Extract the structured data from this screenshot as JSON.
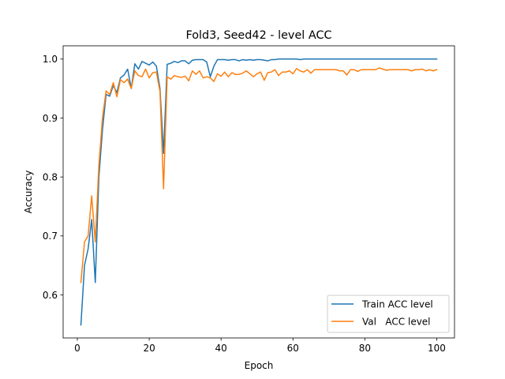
{
  "chart_data": {
    "type": "line",
    "title": "Fold3, Seed42 - level ACC",
    "xlabel": "Epoch",
    "ylabel": "Accuracy",
    "xlim": [
      -3.95,
      104.95
    ],
    "ylim": [
      0.527,
      1.0225
    ],
    "xticks": [
      0,
      20,
      40,
      60,
      80,
      100
    ],
    "yticks": [
      0.6,
      0.7,
      0.8,
      0.9,
      1.0
    ],
    "ytick_labels": [
      "0.6",
      "0.7",
      "0.8",
      "0.9",
      "1.0"
    ],
    "legend_position": "lower right",
    "x": [
      1,
      2,
      3,
      4,
      5,
      6,
      7,
      8,
      9,
      10,
      11,
      12,
      13,
      14,
      15,
      16,
      17,
      18,
      19,
      20,
      21,
      22,
      23,
      24,
      25,
      26,
      27,
      28,
      29,
      30,
      31,
      32,
      33,
      34,
      35,
      36,
      37,
      38,
      39,
      40,
      41,
      42,
      43,
      44,
      45,
      46,
      47,
      48,
      49,
      50,
      51,
      52,
      53,
      54,
      55,
      56,
      57,
      58,
      59,
      60,
      61,
      62,
      63,
      64,
      65,
      66,
      67,
      68,
      69,
      70,
      71,
      72,
      73,
      74,
      75,
      76,
      77,
      78,
      79,
      80,
      81,
      82,
      83,
      84,
      85,
      86,
      87,
      88,
      89,
      90,
      91,
      92,
      93,
      94,
      95,
      96,
      97,
      98,
      99,
      100
    ],
    "series": [
      {
        "name": "Train ACC level",
        "color": "#1f77b4",
        "values": [
          0.549,
          0.65,
          0.678,
          0.728,
          0.621,
          0.8,
          0.88,
          0.94,
          0.937,
          0.955,
          0.943,
          0.968,
          0.973,
          0.983,
          0.95,
          0.992,
          0.983,
          0.996,
          0.993,
          0.99,
          0.995,
          0.988,
          0.95,
          0.84,
          0.991,
          0.993,
          0.996,
          0.994,
          0.997,
          0.997,
          0.992,
          0.998,
          0.999,
          0.999,
          0.999,
          0.995,
          0.97,
          0.988,
          0.999,
          0.999,
          0.999,
          0.998,
          0.999,
          0.999,
          0.997,
          0.999,
          0.998,
          0.999,
          0.998,
          0.999,
          0.999,
          0.998,
          0.997,
          0.999,
          0.999,
          1.0,
          1.0,
          1.0,
          1.0,
          1.0,
          1.0,
          0.999,
          1.0,
          1.0,
          1.0,
          1.0,
          1.0,
          1.0,
          1.0,
          1.0,
          1.0,
          1.0,
          1.0,
          1.0,
          1.0,
          1.0,
          1.0,
          1.0,
          1.0,
          1.0,
          1.0,
          1.0,
          1.0,
          1.0,
          1.0,
          1.0,
          1.0,
          1.0,
          1.0,
          1.0,
          1.0,
          1.0,
          1.0,
          1.0,
          1.0,
          1.0,
          1.0,
          1.0,
          1.0,
          1.0
        ]
      },
      {
        "name": "Val   ACC level",
        "color": "#ff7f0e",
        "values": [
          0.621,
          0.69,
          0.7,
          0.768,
          0.69,
          0.82,
          0.9,
          0.946,
          0.94,
          0.96,
          0.936,
          0.965,
          0.96,
          0.966,
          0.95,
          0.98,
          0.972,
          0.97,
          0.983,
          0.968,
          0.977,
          0.978,
          0.945,
          0.78,
          0.97,
          0.966,
          0.972,
          0.97,
          0.969,
          0.971,
          0.963,
          0.98,
          0.974,
          0.98,
          0.968,
          0.97,
          0.968,
          0.962,
          0.975,
          0.971,
          0.978,
          0.97,
          0.977,
          0.974,
          0.974,
          0.976,
          0.98,
          0.975,
          0.97,
          0.975,
          0.978,
          0.964,
          0.977,
          0.978,
          0.982,
          0.972,
          0.978,
          0.978,
          0.98,
          0.975,
          0.984,
          0.98,
          0.978,
          0.982,
          0.976,
          0.982,
          0.982,
          0.982,
          0.982,
          0.982,
          0.982,
          0.982,
          0.98,
          0.98,
          0.973,
          0.982,
          0.982,
          0.979,
          0.982,
          0.982,
          0.982,
          0.982,
          0.982,
          0.985,
          0.983,
          0.981,
          0.982,
          0.982,
          0.982,
          0.982,
          0.982,
          0.982,
          0.98,
          0.982,
          0.982,
          0.983,
          0.98,
          0.982,
          0.98,
          0.982
        ]
      }
    ]
  }
}
